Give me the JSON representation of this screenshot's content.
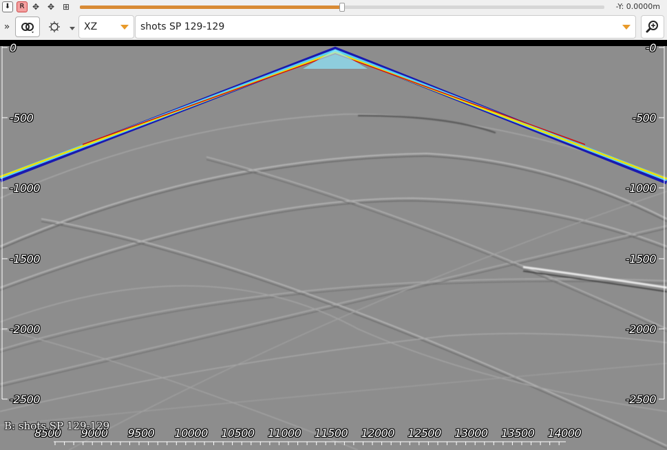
{
  "top_strip": {
    "pin_label": "⬇",
    "r_label": "R",
    "slider_fraction": 0.5,
    "y_readout": "-Y: 0.0000m"
  },
  "toolbar": {
    "expand_glyph": "»",
    "link_glyph": "⊘",
    "view_combo": "XZ",
    "dataset_combo": "shots SP 129-129",
    "zoom_glyph": "⌕",
    "accent_color": "#e89a2a"
  },
  "viewer": {
    "depth_ticks_left": [
      "0",
      "-500",
      "-1000",
      "-1500",
      "-2000",
      "-2500"
    ],
    "depth_ticks_right": [
      "-0",
      "-500",
      "-1000",
      "-1500",
      "-2000",
      "-2500"
    ],
    "x_ticks": [
      "8500",
      "9000",
      "9500",
      "10000",
      "10500",
      "11000",
      "11500",
      "12000",
      "12500",
      "13000",
      "13500",
      "14000"
    ],
    "dataset_label": "B: shots SP 129-129",
    "background_color": "#8e8e8e",
    "wavefront_colors": [
      "#1a1ab0",
      "#5ad0f0",
      "#f2e000",
      "#d01010"
    ]
  }
}
